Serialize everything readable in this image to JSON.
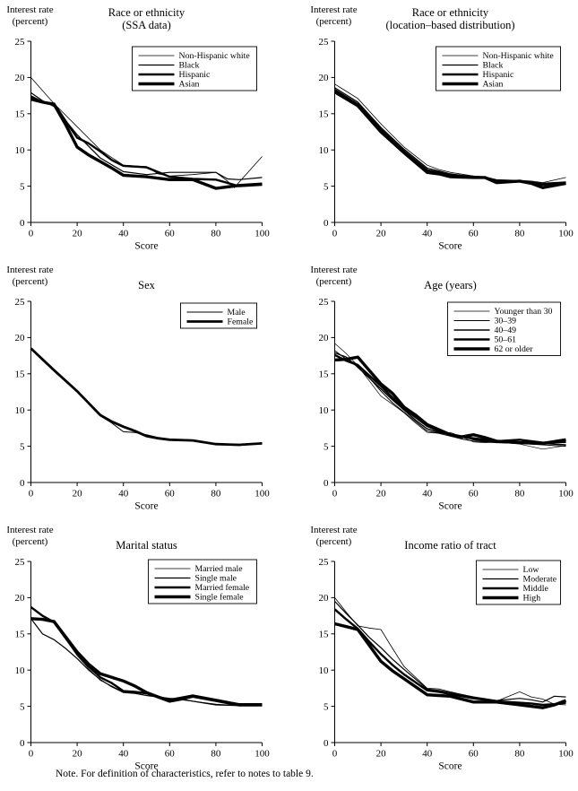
{
  "page": {
    "note": "Note. For definition of characteristics, refer to notes to table 9."
  },
  "chart_data": [
    {
      "type": "line",
      "title_lines": [
        "Race or ethnicity",
        "(SSA data)"
      ],
      "ylabel_lines": [
        "Interest rate",
        "(percent)"
      ],
      "xlabel": "Score",
      "xlim": [
        0,
        100
      ],
      "ylim": [
        0,
        25
      ],
      "xticks": [
        0,
        20,
        40,
        60,
        80,
        100
      ],
      "yticks": [
        0,
        5,
        10,
        15,
        20,
        25
      ],
      "grid": false,
      "legend_position": "top-right",
      "legend_top": 52,
      "series": [
        {
          "name": "Non-Hispanic white",
          "line_width": 0.8,
          "x": [
            0,
            10,
            20,
            30,
            40,
            45,
            50,
            55,
            60,
            70,
            80,
            85,
            88,
            100
          ],
          "y": [
            20.0,
            16.4,
            13.2,
            10.0,
            7.9,
            7.8,
            7.7,
            6.7,
            6.4,
            6.6,
            6.9,
            5.7,
            4.8,
            9.1
          ]
        },
        {
          "name": "Black",
          "line_width": 1.2,
          "x": [
            0,
            5,
            10,
            20,
            30,
            40,
            50,
            60,
            70,
            80,
            85,
            90,
            100
          ],
          "y": [
            17.9,
            16.8,
            16.0,
            12.1,
            8.9,
            7.0,
            6.6,
            6.9,
            6.9,
            6.9,
            6.0,
            5.9,
            6.2
          ]
        },
        {
          "name": "Hispanic",
          "line_width": 2.4,
          "x": [
            0,
            5,
            10,
            15,
            20,
            25,
            30,
            35,
            40,
            50,
            60,
            70,
            80,
            90,
            100
          ],
          "y": [
            17.4,
            16.6,
            16.4,
            14.0,
            11.7,
            10.9,
            9.8,
            8.6,
            7.8,
            7.6,
            6.3,
            6.0,
            5.9,
            5.0,
            5.2
          ]
        },
        {
          "name": "Asian",
          "line_width": 3.4,
          "x": [
            0,
            5,
            10,
            15,
            20,
            25,
            30,
            35,
            40,
            50,
            60,
            70,
            80,
            90,
            100
          ],
          "y": [
            17.0,
            16.6,
            16.3,
            13.5,
            10.4,
            9.3,
            8.4,
            7.5,
            6.5,
            6.3,
            5.9,
            5.9,
            4.7,
            5.1,
            5.3
          ]
        }
      ]
    },
    {
      "type": "line",
      "title_lines": [
        "Race or ethnicity",
        "(location–based distribution)"
      ],
      "ylabel_lines": [
        "Interest rate",
        "(percent)"
      ],
      "xlabel": "Score",
      "xlim": [
        0,
        100
      ],
      "ylim": [
        0,
        25
      ],
      "xticks": [
        0,
        20,
        40,
        60,
        80,
        100
      ],
      "yticks": [
        0,
        5,
        10,
        15,
        20,
        25
      ],
      "grid": false,
      "legend_position": "top-right",
      "legend_top": 52,
      "series": [
        {
          "name": "Non-Hispanic white",
          "line_width": 0.8,
          "x": [
            0,
            10,
            20,
            30,
            40,
            45,
            50,
            60,
            65,
            70,
            80,
            85,
            90,
            100
          ],
          "y": [
            19.1,
            17.1,
            13.6,
            10.4,
            7.9,
            7.3,
            6.9,
            6.4,
            6.3,
            5.9,
            5.8,
            5.7,
            5.5,
            6.2
          ]
        },
        {
          "name": "Black",
          "line_width": 1.2,
          "x": [
            0,
            10,
            20,
            30,
            40,
            45,
            50,
            60,
            65,
            70,
            80,
            85,
            90,
            100
          ],
          "y": [
            18.6,
            16.6,
            13.1,
            10.1,
            7.5,
            7.1,
            6.7,
            6.3,
            6.3,
            5.8,
            5.8,
            5.6,
            5.4,
            5.6
          ]
        },
        {
          "name": "Hispanic",
          "line_width": 2.4,
          "x": [
            0,
            10,
            20,
            30,
            40,
            45,
            50,
            60,
            65,
            70,
            80,
            85,
            90,
            100
          ],
          "y": [
            18.3,
            16.3,
            12.8,
            9.8,
            7.2,
            6.9,
            6.5,
            6.3,
            6.2,
            5.7,
            5.7,
            5.5,
            5.2,
            5.5
          ]
        },
        {
          "name": "Asian",
          "line_width": 3.4,
          "x": [
            0,
            10,
            20,
            30,
            40,
            45,
            50,
            60,
            65,
            70,
            80,
            85,
            90,
            100
          ],
          "y": [
            18.0,
            16.1,
            12.5,
            9.6,
            6.9,
            6.7,
            6.3,
            6.2,
            6.2,
            5.5,
            5.7,
            5.4,
            4.8,
            5.4
          ]
        }
      ]
    },
    {
      "type": "line",
      "title_lines": [
        "Sex"
      ],
      "ylabel_lines": [
        "Interest rate",
        "(percent)"
      ],
      "xlabel": "Score",
      "xlim": [
        0,
        100
      ],
      "ylim": [
        0,
        25
      ],
      "xticks": [
        0,
        20,
        40,
        60,
        80,
        100
      ],
      "yticks": [
        0,
        5,
        10,
        15,
        20,
        25
      ],
      "grid": false,
      "legend_position": "top-right",
      "legend_top": 48,
      "series": [
        {
          "name": "Male",
          "line_width": 1.0,
          "x": [
            0,
            10,
            20,
            30,
            35,
            40,
            45,
            50,
            55,
            60,
            70,
            80,
            90,
            100
          ],
          "y": [
            18.5,
            15.6,
            12.5,
            9.2,
            8.2,
            7.0,
            6.9,
            6.6,
            6.2,
            5.9,
            5.8,
            5.3,
            5.1,
            5.4
          ]
        },
        {
          "name": "Female",
          "line_width": 2.8,
          "x": [
            0,
            10,
            20,
            30,
            35,
            40,
            45,
            50,
            55,
            60,
            70,
            80,
            90,
            100
          ],
          "y": [
            18.5,
            15.5,
            12.6,
            9.3,
            8.4,
            7.7,
            7.1,
            6.4,
            6.1,
            5.9,
            5.8,
            5.3,
            5.2,
            5.4
          ]
        }
      ]
    },
    {
      "type": "line",
      "title_lines": [
        "Age (years)"
      ],
      "ylabel_lines": [
        "Interest rate",
        "(percent)"
      ],
      "xlabel": "Score",
      "xlim": [
        0,
        100
      ],
      "ylim": [
        0,
        25
      ],
      "xticks": [
        0,
        20,
        40,
        60,
        80,
        100
      ],
      "yticks": [
        0,
        5,
        10,
        15,
        20,
        25
      ],
      "grid": false,
      "legend_position": "top-right",
      "legend_top": 47,
      "series": [
        {
          "name": "Younger than 30",
          "line_width": 0.7,
          "x": [
            0,
            5,
            10,
            20,
            25,
            30,
            35,
            40,
            45,
            50,
            55,
            60,
            65,
            70,
            80,
            90,
            100
          ],
          "y": [
            19.2,
            17.8,
            16.1,
            11.9,
            10.8,
            9.6,
            8.2,
            6.9,
            6.8,
            6.9,
            6.3,
            5.6,
            5.5,
            5.6,
            5.3,
            4.6,
            5.1
          ]
        },
        {
          "name": "30–39",
          "line_width": 1.0,
          "x": [
            0,
            5,
            10,
            20,
            25,
            30,
            35,
            40,
            45,
            50,
            55,
            60,
            65,
            70,
            80,
            90,
            100
          ],
          "y": [
            18.2,
            17.0,
            16.3,
            12.6,
            11.0,
            9.7,
            8.4,
            7.1,
            6.8,
            6.4,
            6.0,
            5.7,
            5.6,
            5.5,
            5.4,
            5.2,
            5.0
          ]
        },
        {
          "name": "40–49",
          "line_width": 1.4,
          "x": [
            0,
            5,
            10,
            20,
            25,
            30,
            35,
            40,
            45,
            50,
            55,
            60,
            65,
            70,
            80,
            90,
            100
          ],
          "y": [
            17.9,
            17.3,
            15.9,
            12.9,
            11.4,
            10.0,
            8.6,
            7.4,
            6.9,
            6.6,
            6.4,
            5.9,
            5.7,
            5.6,
            5.5,
            5.4,
            5.2
          ]
        },
        {
          "name": "50–61",
          "line_width": 2.4,
          "x": [
            0,
            5,
            10,
            20,
            25,
            30,
            35,
            40,
            45,
            50,
            55,
            60,
            65,
            70,
            80,
            90,
            100
          ],
          "y": [
            17.6,
            16.8,
            16.2,
            13.3,
            11.7,
            10.2,
            9.0,
            7.8,
            7.1,
            6.6,
            6.3,
            6.1,
            5.9,
            5.7,
            5.9,
            5.5,
            5.6
          ]
        },
        {
          "name": "62 or older",
          "line_width": 3.4,
          "x": [
            0,
            5,
            10,
            20,
            25,
            30,
            35,
            40,
            45,
            50,
            55,
            60,
            65,
            70,
            80,
            90,
            100
          ],
          "y": [
            16.9,
            17.0,
            17.3,
            13.6,
            12.3,
            10.4,
            9.3,
            8.0,
            7.3,
            6.6,
            6.3,
            6.6,
            6.2,
            5.7,
            5.5,
            5.4,
            5.9
          ]
        }
      ]
    },
    {
      "type": "line",
      "title_lines": [
        "Marital status"
      ],
      "ylabel_lines": [
        "Interest rate",
        "(percent)"
      ],
      "xlabel": "Score",
      "xlim": [
        0,
        100
      ],
      "ylim": [
        0,
        25
      ],
      "xticks": [
        0,
        20,
        40,
        60,
        80,
        100
      ],
      "yticks": [
        0,
        5,
        10,
        15,
        20,
        25
      ],
      "grid": false,
      "legend_position": "top-right",
      "legend_top": 44,
      "series": [
        {
          "name": "Married male",
          "line_width": 0.8,
          "x": [
            0,
            5,
            10,
            15,
            20,
            25,
            30,
            35,
            40,
            45,
            50,
            55,
            60,
            65,
            70,
            80,
            90,
            100
          ],
          "y": [
            18.7,
            17.6,
            16.7,
            14.3,
            12.0,
            10.2,
            8.6,
            7.8,
            7.0,
            6.9,
            6.7,
            6.4,
            6.0,
            5.9,
            5.7,
            5.3,
            5.1,
            5.2
          ]
        },
        {
          "name": "Single male",
          "line_width": 1.2,
          "x": [
            0,
            5,
            10,
            15,
            20,
            25,
            30,
            35,
            40,
            45,
            50,
            55,
            60,
            65,
            70,
            80,
            90,
            100
          ],
          "y": [
            17.1,
            15.0,
            14.2,
            13.0,
            11.6,
            10.0,
            8.7,
            7.7,
            6.9,
            6.8,
            6.5,
            6.3,
            6.1,
            6.0,
            5.7,
            5.2,
            5.1,
            5.1
          ]
        },
        {
          "name": "Married female",
          "line_width": 2.4,
          "x": [
            0,
            5,
            10,
            15,
            20,
            25,
            30,
            35,
            40,
            45,
            50,
            55,
            60,
            65,
            70,
            80,
            90,
            100
          ],
          "y": [
            18.7,
            17.5,
            16.6,
            14.4,
            12.3,
            10.5,
            9.0,
            8.2,
            7.1,
            7.0,
            6.8,
            6.3,
            5.9,
            6.2,
            6.5,
            5.9,
            5.3,
            5.3
          ]
        },
        {
          "name": "Single female",
          "line_width": 3.4,
          "x": [
            0,
            5,
            10,
            15,
            20,
            25,
            30,
            35,
            40,
            45,
            50,
            55,
            60,
            65,
            70,
            80,
            90,
            100
          ],
          "y": [
            17.1,
            17.0,
            16.7,
            14.6,
            12.5,
            10.8,
            9.5,
            9.0,
            8.5,
            7.8,
            6.9,
            6.3,
            5.7,
            6.0,
            6.4,
            5.8,
            5.2,
            5.2
          ]
        }
      ]
    },
    {
      "type": "line",
      "title_lines": [
        "Income ratio of tract"
      ],
      "ylabel_lines": [
        "Interest rate",
        "(percent)"
      ],
      "xlabel": "Score",
      "xlim": [
        0,
        100
      ],
      "ylim": [
        0,
        25
      ],
      "xticks": [
        0,
        20,
        40,
        60,
        80,
        100
      ],
      "yticks": [
        0,
        5,
        10,
        15,
        20,
        25
      ],
      "grid": false,
      "legend_position": "top-right",
      "legend_top": 45,
      "series": [
        {
          "name": "Low",
          "line_width": 0.8,
          "x": [
            0,
            5,
            10,
            15,
            20,
            25,
            30,
            40,
            45,
            50,
            60,
            70,
            80,
            85,
            90,
            95,
            100
          ],
          "y": [
            20.0,
            18.0,
            16.1,
            15.8,
            15.6,
            13.0,
            10.5,
            7.5,
            7.4,
            7.0,
            6.3,
            5.7,
            7.0,
            6.3,
            6.0,
            5.3,
            5.2
          ]
        },
        {
          "name": "Moderate",
          "line_width": 1.2,
          "x": [
            0,
            5,
            10,
            15,
            20,
            25,
            30,
            40,
            45,
            50,
            60,
            70,
            80,
            85,
            90,
            95,
            100
          ],
          "y": [
            19.5,
            17.8,
            16.2,
            14.5,
            13.1,
            11.5,
            10.1,
            7.4,
            7.2,
            6.9,
            6.3,
            5.8,
            6.1,
            5.9,
            5.6,
            6.4,
            6.3
          ]
        },
        {
          "name": "Middle",
          "line_width": 2.4,
          "x": [
            0,
            5,
            10,
            15,
            20,
            25,
            30,
            40,
            45,
            50,
            60,
            70,
            80,
            85,
            90,
            95,
            100
          ],
          "y": [
            18.4,
            17.0,
            15.7,
            13.9,
            12.2,
            10.7,
            9.4,
            7.2,
            7.0,
            6.7,
            6.1,
            5.7,
            5.5,
            5.4,
            5.2,
            5.3,
            5.5
          ]
        },
        {
          "name": "High",
          "line_width": 3.4,
          "x": [
            0,
            5,
            10,
            15,
            20,
            25,
            30,
            40,
            45,
            50,
            60,
            70,
            80,
            85,
            90,
            95,
            100
          ],
          "y": [
            16.4,
            16.0,
            15.6,
            13.4,
            11.2,
            9.9,
            8.8,
            6.6,
            6.5,
            6.4,
            5.6,
            5.6,
            5.2,
            5.0,
            4.8,
            5.2,
            5.8
          ]
        }
      ]
    }
  ]
}
